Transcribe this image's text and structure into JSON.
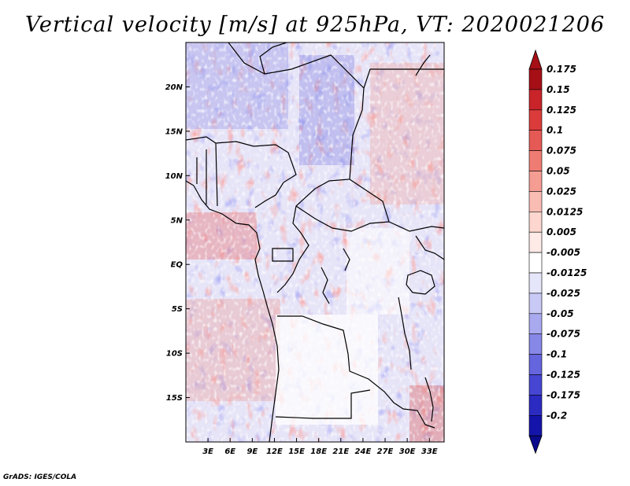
{
  "title": "Vertical velocity [m/s] at 925hPa, VT: 2020021206",
  "credit": "GrADS: IGES/COLA",
  "map": {
    "projection": "lat-lon",
    "lon_range": [
      0,
      35
    ],
    "lat_range": [
      -20,
      25
    ],
    "lat_ticks": [
      {
        "value": 20,
        "label": "20N"
      },
      {
        "value": 15,
        "label": "15N"
      },
      {
        "value": 10,
        "label": "10N"
      },
      {
        "value": 5,
        "label": "5N"
      },
      {
        "value": 0,
        "label": "EQ"
      },
      {
        "value": -5,
        "label": "5S"
      },
      {
        "value": -10,
        "label": "10S"
      },
      {
        "value": -15,
        "label": "15S"
      }
    ],
    "lon_ticks": [
      {
        "value": 3,
        "label": "3E"
      },
      {
        "value": 6,
        "label": "6E"
      },
      {
        "value": 9,
        "label": "9E"
      },
      {
        "value": 12,
        "label": "12E"
      },
      {
        "value": 15,
        "label": "15E"
      },
      {
        "value": 18,
        "label": "18E"
      },
      {
        "value": 21,
        "label": "21E"
      },
      {
        "value": 24,
        "label": "24E"
      },
      {
        "value": 27,
        "label": "27E"
      },
      {
        "value": 30,
        "label": "30E"
      },
      {
        "value": 33,
        "label": "33E"
      }
    ]
  },
  "colorbar": {
    "levels": [
      {
        "label": "0.175",
        "color": "#a50f15"
      },
      {
        "label": "0.15",
        "color": "#c8242a"
      },
      {
        "label": "0.125",
        "color": "#dc3b3b"
      },
      {
        "label": "0.1",
        "color": "#e65a55"
      },
      {
        "label": "0.075",
        "color": "#ef7c73"
      },
      {
        "label": "0.05",
        "color": "#f59d93"
      },
      {
        "label": "0.025",
        "color": "#f9bcb3"
      },
      {
        "label": "0.0125",
        "color": "#fcd6cf"
      },
      {
        "label": "0.005",
        "color": "#feeae6"
      },
      {
        "label": "-0.005",
        "color": "#ffffff"
      },
      {
        "label": "-0.0125",
        "color": "#e6e6fb"
      },
      {
        "label": "-0.025",
        "color": "#c9c9f6"
      },
      {
        "label": "-0.05",
        "color": "#a9a9f0"
      },
      {
        "label": "-0.075",
        "color": "#8787e8"
      },
      {
        "label": "-0.1",
        "color": "#6565de"
      },
      {
        "label": "-0.125",
        "color": "#4646d2"
      },
      {
        "label": "-0.175",
        "color": "#2b2bc2"
      },
      {
        "label": "-0.2",
        "color": "#1414aa"
      }
    ],
    "bottom_color": "#0a0a8c"
  }
}
